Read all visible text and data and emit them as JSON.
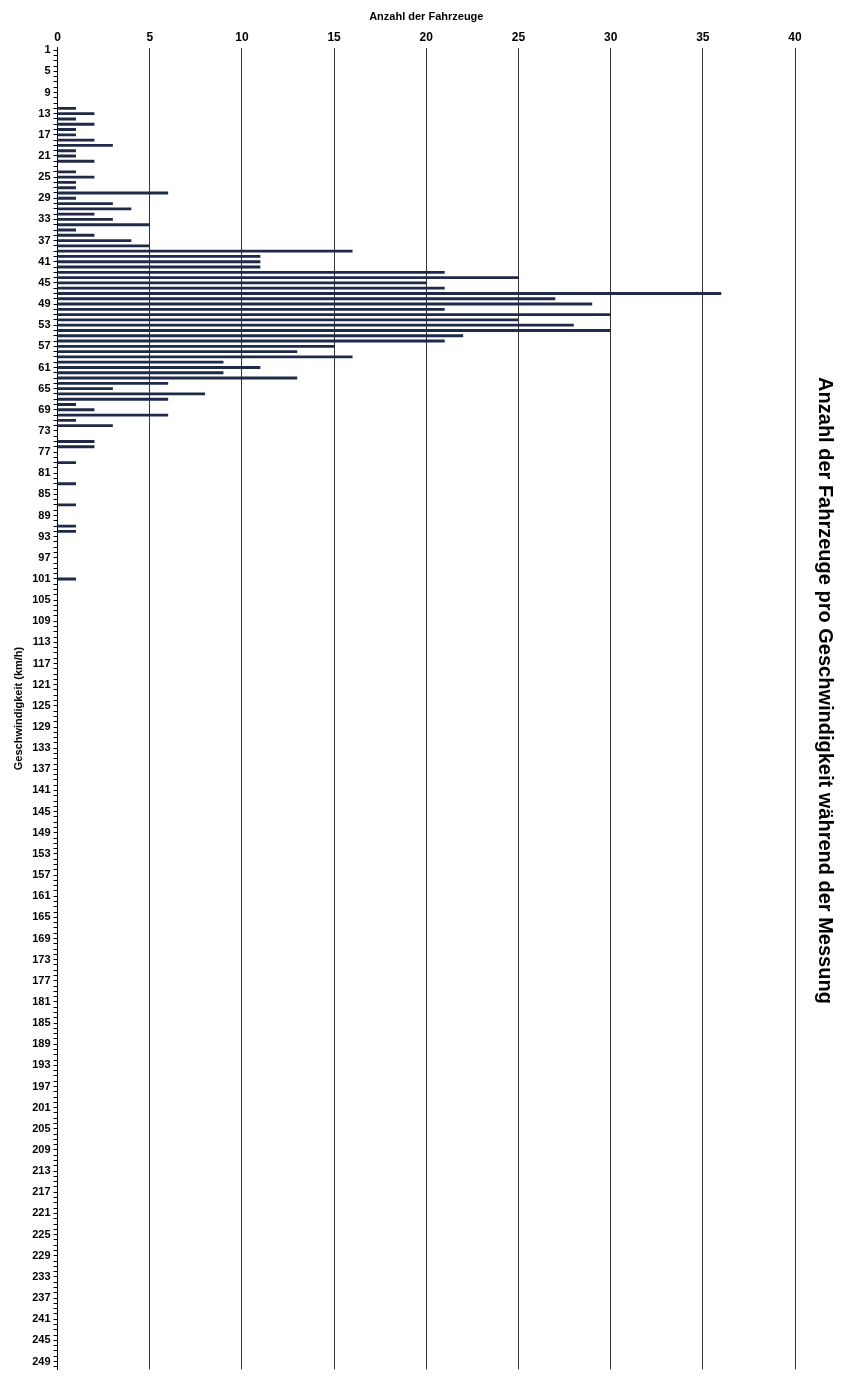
{
  "chart_data": {
    "type": "bar",
    "orientation": "horizontal",
    "title": "Anzahl der Fahrzeuge pro Geschwindigkeit während der Messung",
    "xlabel": "Anzahl der Fahrzeuge",
    "ylabel": "Geschwindigkeit (km/h)",
    "categories": [
      "1",
      null,
      null,
      null,
      "5",
      null,
      null,
      null,
      "9",
      null,
      null,
      null,
      "13",
      null,
      null,
      null,
      "17",
      null,
      null,
      null,
      "21",
      null,
      null,
      null,
      "25",
      null,
      null,
      null,
      "29",
      null,
      null,
      null,
      "33",
      null,
      null,
      null,
      "37",
      null,
      null,
      null,
      "41",
      null,
      null,
      null,
      "45",
      null,
      null,
      null,
      "49",
      null,
      null,
      null,
      "53",
      null,
      null,
      null,
      "57",
      null,
      null,
      null,
      "61",
      null,
      null,
      null,
      "65",
      null,
      null,
      null,
      "69",
      null,
      null,
      null,
      "73",
      null,
      null,
      null,
      "77",
      null,
      null,
      null,
      "81",
      null,
      null,
      null,
      "85",
      null,
      null,
      null,
      "89",
      null,
      null,
      null,
      "93",
      null,
      null,
      null,
      "97",
      null,
      null,
      null,
      "101",
      null,
      null,
      null,
      "105",
      null,
      null,
      null,
      "109",
      null,
      null,
      null,
      "113",
      null,
      null,
      null,
      "117",
      null,
      null,
      null,
      "121",
      null,
      null,
      null,
      "125",
      null,
      null,
      null,
      "129",
      null,
      null,
      null,
      "133",
      null,
      null,
      null,
      "137",
      null,
      null,
      null,
      "141",
      null,
      null,
      null,
      "145",
      null,
      null,
      null,
      "149",
      null,
      null,
      null,
      "153",
      null,
      null,
      null,
      "157",
      null,
      null,
      null,
      "161",
      null,
      null,
      null,
      "165",
      null,
      null,
      null,
      "169",
      null,
      null,
      null,
      "173",
      null,
      null,
      null,
      "177",
      null,
      null,
      null,
      "181",
      null,
      null,
      null,
      "185",
      null,
      null,
      null,
      "189",
      null,
      null,
      null,
      "193",
      null,
      null,
      null,
      "197",
      null,
      null,
      null,
      "201",
      null,
      null,
      null,
      "205",
      null,
      null,
      null,
      "209",
      null,
      null,
      null,
      "213",
      null,
      null,
      null,
      "217",
      null,
      null,
      null,
      "221",
      null,
      null,
      null,
      "225",
      null,
      null,
      null,
      "229",
      null,
      null,
      null,
      "233",
      null,
      null,
      null,
      "237",
      null,
      null,
      null,
      "241",
      null,
      null,
      null,
      "245",
      null,
      null,
      null,
      "249",
      null
    ],
    "values": [
      0,
      0,
      0,
      0,
      0,
      0,
      0,
      0,
      0,
      0,
      0,
      1,
      2,
      1,
      2,
      1,
      1,
      2,
      3,
      1,
      1,
      2,
      0,
      1,
      2,
      1,
      1,
      6,
      1,
      3,
      4,
      2,
      3,
      5,
      1,
      2,
      4,
      5,
      16,
      11,
      11,
      11,
      21,
      25,
      20,
      21,
      36,
      27,
      29,
      21,
      30,
      25,
      28,
      30,
      22,
      21,
      15,
      13,
      16,
      9,
      11,
      9,
      13,
      6,
      3,
      8,
      6,
      1,
      2,
      6,
      1,
      3,
      0,
      0,
      2,
      2,
      0,
      0,
      1,
      0,
      0,
      0,
      1,
      0,
      0,
      0,
      1,
      0,
      0,
      0,
      1,
      1,
      0,
      0,
      0,
      0,
      0,
      0,
      0,
      0,
      1,
      0,
      0,
      0,
      0,
      0,
      0,
      0,
      0,
      0,
      0,
      0,
      0,
      0,
      0,
      0,
      0,
      0,
      0,
      0,
      0,
      0,
      0,
      0,
      0,
      0,
      0,
      0,
      0,
      0,
      0,
      0,
      0,
      0,
      0,
      0,
      0,
      0,
      0,
      0,
      0,
      0,
      0,
      0,
      0,
      0,
      0,
      0,
      0,
      0,
      0,
      0,
      0,
      0,
      0,
      0,
      0,
      0,
      0,
      0,
      0,
      0,
      0,
      0,
      0,
      0,
      0,
      0,
      0,
      0,
      0,
      0,
      0,
      0,
      0,
      0,
      0,
      0,
      0,
      0,
      0,
      0,
      0,
      0,
      0,
      0,
      0,
      0,
      0,
      0,
      0,
      0,
      0,
      0,
      0,
      0,
      0,
      0,
      0,
      0,
      0,
      0,
      0,
      0,
      0,
      0,
      0,
      0,
      0,
      0,
      0,
      0,
      0,
      0,
      0,
      0,
      0,
      0,
      0,
      0,
      0,
      0,
      0,
      0,
      0,
      0,
      0,
      0,
      0,
      0,
      0,
      0,
      0,
      0,
      0,
      0,
      0,
      0,
      0,
      0,
      0,
      0,
      0,
      0,
      0,
      0,
      0,
      0,
      0,
      0
    ],
    "color": "#1f2a48",
    "xlim": [
      0,
      40
    ],
    "xticks": [
      0,
      5,
      10,
      15,
      20,
      25,
      30,
      35,
      40
    ],
    "grid": "x",
    "legend": false
  }
}
